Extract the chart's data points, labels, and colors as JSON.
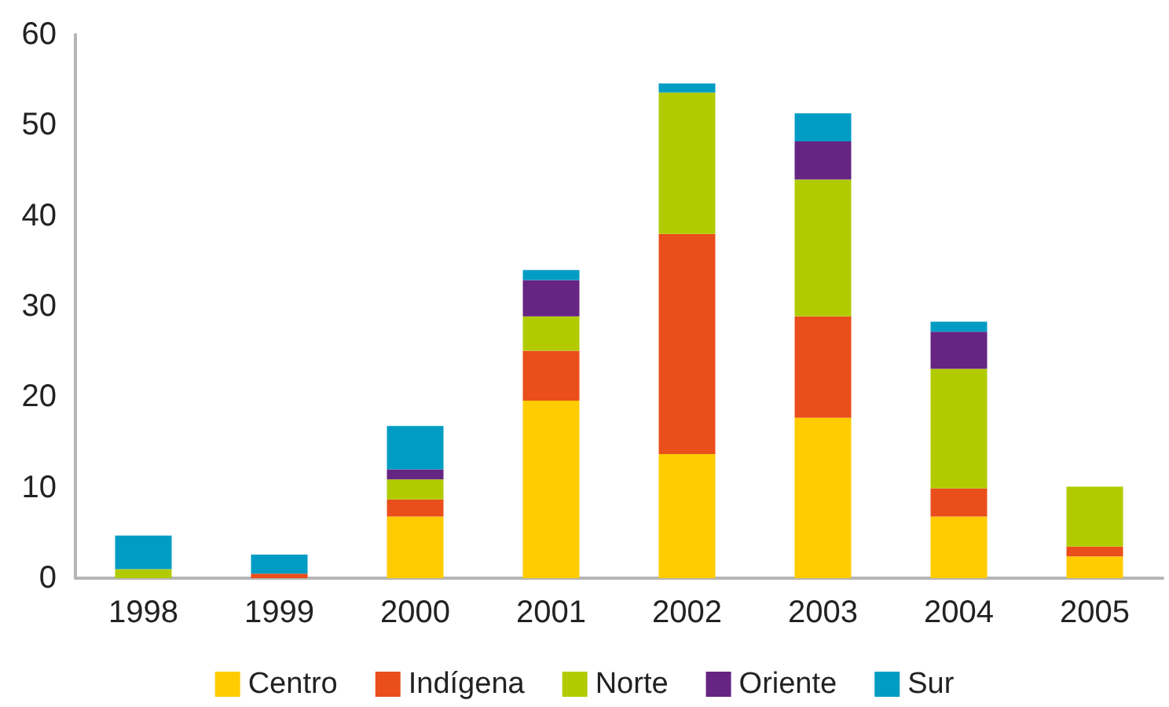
{
  "chart_data": {
    "type": "bar",
    "stacked": true,
    "categories": [
      "1998",
      "1999",
      "2000",
      "2001",
      "2002",
      "2003",
      "2004",
      "2005"
    ],
    "series": [
      {
        "name": "Centro",
        "color": "#ffcc00",
        "values": [
          0,
          0,
          6.8,
          19.6,
          13.7,
          17.7,
          6.8,
          2.4
        ]
      },
      {
        "name": "Indígena",
        "color": "#e94e1b",
        "values": [
          0,
          0.5,
          1.9,
          5.5,
          24.3,
          11.2,
          3.1,
          1.1
        ]
      },
      {
        "name": "Norte",
        "color": "#b1cb00",
        "values": [
          1,
          0,
          2.2,
          3.8,
          15.6,
          15.1,
          13.2,
          6.6
        ]
      },
      {
        "name": "Oriente",
        "color": "#662483",
        "values": [
          0,
          0,
          1.1,
          4.0,
          0,
          4.2,
          4.1,
          0
        ]
      },
      {
        "name": "Sur",
        "color": "#009cc4",
        "values": [
          3.7,
          2.1,
          4.8,
          1.1,
          1.0,
          3.1,
          1.1,
          0
        ]
      }
    ],
    "ylim": [
      0,
      60
    ],
    "yticks": [
      0,
      10,
      20,
      30,
      40,
      50,
      60
    ],
    "grid": false,
    "legend": "bottom"
  }
}
